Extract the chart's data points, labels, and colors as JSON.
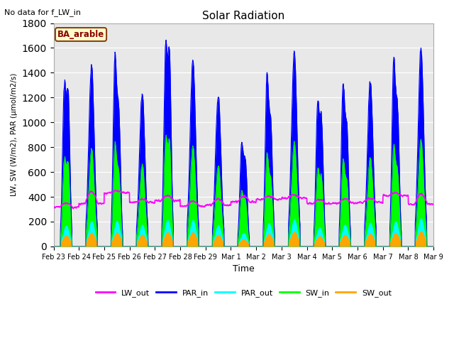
{
  "title": "Solar Radiation",
  "subtitle": "No data for f_LW_in",
  "xlabel": "Time",
  "ylabel": "LW, SW (W/m2), PAR (μmol/m2/s)",
  "legend_label": "BA_arable",
  "ylim": [
    0,
    1800
  ],
  "yticks": [
    0,
    200,
    400,
    600,
    800,
    1000,
    1200,
    1400,
    1600,
    1800
  ],
  "xtick_labels": [
    "Feb 23",
    "Feb 24",
    "Feb 25",
    "Feb 26",
    "Feb 27",
    "Feb 28",
    "Feb 29",
    "Mar 1",
    "Mar 2",
    "Mar 3",
    "Mar 4",
    "Mar 5",
    "Mar 6",
    "Mar 7",
    "Mar 8",
    "Mar 9"
  ],
  "colors": {
    "LW_out": "#ff00ff",
    "PAR_in": "#0000ff",
    "PAR_out": "#00ffff",
    "SW_in": "#00ff00",
    "SW_out": "#ffa500"
  },
  "bg_color": "#e8e8e8",
  "grid_color": "#ffffff",
  "par_in_peaks": [
    1200,
    1450,
    1460,
    1230,
    1510,
    1500,
    1220,
    780,
    1320,
    1550,
    1090,
    1240,
    1350,
    1430,
    1600
  ],
  "par_in_second_peaks": [
    1160,
    0,
    1020,
    0,
    1460,
    0,
    0,
    640,
    910,
    0,
    965,
    890,
    0,
    1040,
    0
  ],
  "lw_out_base": [
    315,
    345,
    430,
    355,
    370,
    325,
    335,
    360,
    380,
    390,
    345,
    350,
    355,
    410,
    340
  ],
  "lw_out_peak": [
    350,
    440,
    450,
    380,
    410,
    365,
    385,
    405,
    405,
    415,
    380,
    385,
    390,
    430,
    420
  ]
}
